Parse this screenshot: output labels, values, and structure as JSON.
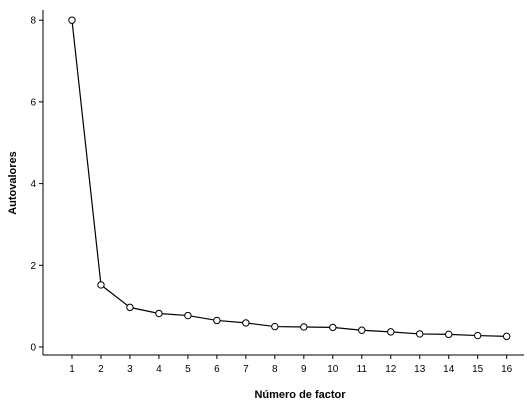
{
  "chart_data": {
    "type": "line",
    "title": "",
    "xlabel": "Número de factor",
    "ylabel": "Autovalores",
    "x": [
      1,
      2,
      3,
      4,
      5,
      6,
      7,
      8,
      9,
      10,
      11,
      12,
      13,
      14,
      15,
      16
    ],
    "series": [
      {
        "values": [
          8.0,
          1.52,
          0.97,
          0.82,
          0.77,
          0.65,
          0.59,
          0.5,
          0.49,
          0.48,
          0.41,
          0.37,
          0.32,
          0.31,
          0.28,
          0.26
        ],
        "marker": "open-circle",
        "color": "#000000"
      }
    ],
    "xticks": [
      "1",
      "2",
      "3",
      "4",
      "5",
      "6",
      "7",
      "8",
      "9",
      "10",
      "11",
      "12",
      "13",
      "14",
      "15",
      "16"
    ],
    "yticks": [
      0,
      2,
      4,
      6,
      8
    ],
    "xlim": [
      0,
      16.2
    ],
    "ylim": [
      -0.2,
      8.3
    ],
    "grid": false,
    "legend": "none"
  }
}
